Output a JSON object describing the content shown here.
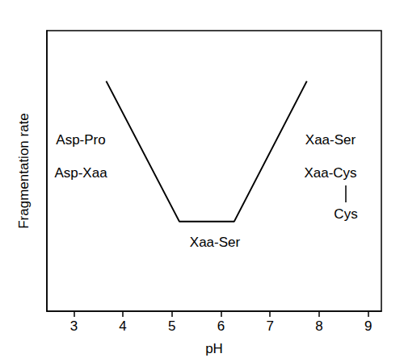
{
  "chart_data": {
    "type": "line",
    "x_label": "pH",
    "y_label": "Fragmentation rate",
    "x": [
      3.66,
      5.15,
      6.27,
      7.75
    ],
    "values": [
      8.2,
      3.2,
      3.2,
      8.2
    ],
    "color": "#000000",
    "xlim": [
      2.45,
      9.27
    ],
    "xticks": [
      3,
      4,
      5,
      6,
      7,
      8,
      9
    ],
    "ylim": [
      0,
      10
    ],
    "tick_labels": "x",
    "grid": false,
    "annotations": [
      "Asp-Pro",
      "Asp-Xaa",
      "Xaa-Ser",
      "Xaa-Ser",
      "Xaa-Cys",
      "Cys"
    ]
  }
}
